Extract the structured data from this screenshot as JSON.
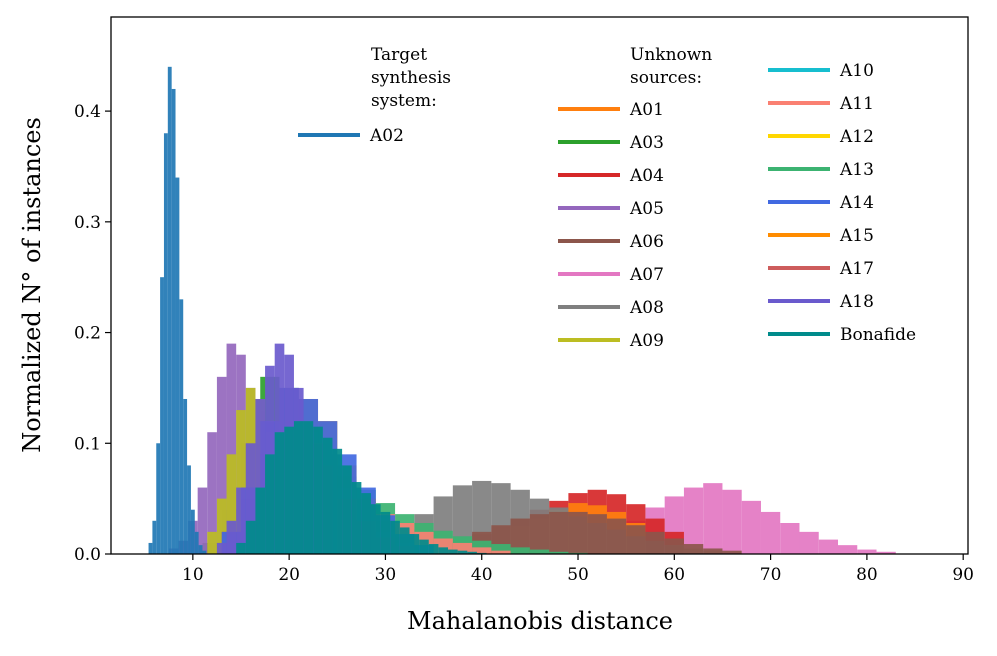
{
  "chart_data": {
    "type": "histogram",
    "xlabel": "Mahalanobis distance",
    "ylabel": "Normalized N° of instances",
    "xlim": [
      1.5,
      90.5
    ],
    "ylim": [
      0,
      0.485
    ],
    "xticks": [
      10,
      20,
      30,
      40,
      50,
      60,
      70,
      80,
      90
    ],
    "yticks": [
      0.0,
      0.1,
      0.2,
      0.3,
      0.4
    ],
    "ytick_labels": [
      "0.0",
      "0.1",
      "0.2",
      "0.3",
      "0.4"
    ],
    "grid": false,
    "legend_target": {
      "title": [
        "Target",
        "synthesis",
        "system:"
      ],
      "entries": [
        {
          "name": "A02",
          "color": "#1f77b4"
        }
      ]
    },
    "legend_unknown": {
      "title": [
        "Unknown",
        "sources:"
      ],
      "col1": [
        {
          "name": "A01",
          "color": "#ff7f0e"
        },
        {
          "name": "A03",
          "color": "#2ca02c"
        },
        {
          "name": "A04",
          "color": "#d62728"
        },
        {
          "name": "A05",
          "color": "#9467bd"
        },
        {
          "name": "A06",
          "color": "#8c564b"
        },
        {
          "name": "A07",
          "color": "#e377c2"
        },
        {
          "name": "A08",
          "color": "#7f7f7f"
        },
        {
          "name": "A09",
          "color": "#bcbd22"
        }
      ],
      "col2": [
        {
          "name": "A10",
          "color": "#17becf"
        },
        {
          "name": "A11",
          "color": "#fa8072"
        },
        {
          "name": "A12",
          "color": "#ffd700"
        },
        {
          "name": "A13",
          "color": "#3cb371"
        },
        {
          "name": "A14",
          "color": "#4169e1"
        },
        {
          "name": "A15",
          "color": "#ff8c00"
        },
        {
          "name": "A17",
          "color": "#cd5c5c"
        },
        {
          "name": "A18",
          "color": "#6a5acd"
        },
        {
          "name": "Bonafide",
          "color": "#008b8b"
        }
      ]
    },
    "series": [
      {
        "name": "A07",
        "color": "#e377c2",
        "x": [
          54,
          56,
          58,
          60,
          62,
          64,
          66,
          68,
          70,
          72,
          74,
          76,
          78,
          80,
          82
        ],
        "y": [
          0.018,
          0.03,
          0.042,
          0.052,
          0.06,
          0.064,
          0.058,
          0.048,
          0.038,
          0.028,
          0.02,
          0.013,
          0.008,
          0.004,
          0.002
        ]
      },
      {
        "name": "A04",
        "color": "#d62728",
        "x": [
          40,
          42,
          44,
          46,
          48,
          50,
          52,
          54,
          56,
          58,
          60
        ],
        "y": [
          0.018,
          0.025,
          0.032,
          0.04,
          0.048,
          0.055,
          0.058,
          0.054,
          0.045,
          0.032,
          0.02
        ]
      },
      {
        "name": "A01",
        "color": "#ff7f0e",
        "x": [
          44,
          46,
          48,
          50,
          52,
          54,
          56
        ],
        "y": [
          0.025,
          0.032,
          0.04,
          0.046,
          0.044,
          0.038,
          0.028
        ]
      },
      {
        "name": "A08",
        "color": "#7f7f7f",
        "x": [
          30,
          32,
          34,
          36,
          38,
          40,
          42,
          44,
          46,
          48,
          50,
          52,
          54,
          56,
          58,
          60,
          62,
          64
        ],
        "y": [
          0.012,
          0.022,
          0.036,
          0.052,
          0.062,
          0.066,
          0.064,
          0.058,
          0.05,
          0.042,
          0.034,
          0.028,
          0.022,
          0.016,
          0.012,
          0.008,
          0.005,
          0.003
        ]
      },
      {
        "name": "A06",
        "color": "#8c564b",
        "x": [
          40,
          42,
          44,
          46,
          48,
          50,
          52,
          54,
          56,
          58,
          60,
          62,
          64,
          66
        ],
        "y": [
          0.02,
          0.026,
          0.032,
          0.036,
          0.038,
          0.038,
          0.036,
          0.032,
          0.026,
          0.02,
          0.014,
          0.009,
          0.005,
          0.003
        ]
      },
      {
        "name": "A13",
        "color": "#3cb371",
        "x": [
          18,
          20,
          22,
          24,
          26,
          28,
          30,
          32,
          34,
          36,
          38,
          40,
          42,
          44,
          46,
          48,
          50
        ],
        "y": [
          0.08,
          0.09,
          0.088,
          0.082,
          0.07,
          0.058,
          0.046,
          0.036,
          0.028,
          0.021,
          0.016,
          0.012,
          0.009,
          0.006,
          0.004,
          0.002,
          0.001
        ]
      },
      {
        "name": "A11",
        "color": "#fa8072",
        "x": [
          22,
          24,
          26,
          28,
          30,
          32,
          34,
          36,
          38,
          40,
          42
        ],
        "y": [
          0.08,
          0.068,
          0.056,
          0.046,
          0.036,
          0.028,
          0.02,
          0.014,
          0.01,
          0.006,
          0.003
        ]
      },
      {
        "name": "A03",
        "color": "#2ca02c",
        "x": [
          12,
          14,
          16,
          18,
          20,
          22,
          24,
          26,
          28,
          30,
          32,
          34
        ],
        "y": [
          0.01,
          0.04,
          0.1,
          0.16,
          0.15,
          0.12,
          0.09,
          0.06,
          0.04,
          0.025,
          0.015,
          0.008
        ]
      },
      {
        "name": "A05",
        "color": "#9467bd",
        "x": [
          8,
          9,
          10,
          11,
          12,
          13,
          14,
          15,
          16,
          17,
          18,
          19,
          20,
          21,
          22,
          24,
          26
        ],
        "y": [
          0.005,
          0.012,
          0.03,
          0.06,
          0.11,
          0.16,
          0.19,
          0.18,
          0.15,
          0.13,
          0.12,
          0.1,
          0.08,
          0.06,
          0.045,
          0.025,
          0.012
        ]
      },
      {
        "name": "A09",
        "color": "#bcbd22",
        "x": [
          12,
          13,
          14,
          15,
          16,
          17,
          18,
          19,
          20,
          21,
          22
        ],
        "y": [
          0.02,
          0.05,
          0.09,
          0.13,
          0.15,
          0.14,
          0.11,
          0.08,
          0.05,
          0.03,
          0.015
        ]
      },
      {
        "name": "A15",
        "color": "#ff8c00",
        "x": [
          16,
          18,
          20,
          22,
          24,
          26,
          28,
          30,
          32
        ],
        "y": [
          0.04,
          0.08,
          0.12,
          0.14,
          0.12,
          0.08,
          0.05,
          0.03,
          0.015
        ]
      },
      {
        "name": "A12",
        "color": "#ffd700",
        "x": [
          20,
          22,
          24,
          26,
          28,
          30
        ],
        "y": [
          0.09,
          0.1,
          0.08,
          0.06,
          0.04,
          0.02
        ]
      },
      {
        "name": "A17",
        "color": "#cd5c5c",
        "x": [
          14,
          16,
          18,
          20,
          22,
          24,
          26,
          28,
          30,
          32
        ],
        "y": [
          0.02,
          0.05,
          0.09,
          0.12,
          0.11,
          0.09,
          0.06,
          0.04,
          0.02,
          0.01
        ]
      },
      {
        "name": "A14",
        "color": "#4169e1",
        "x": [
          14,
          16,
          18,
          20,
          22,
          24,
          26,
          28,
          30,
          32,
          34
        ],
        "y": [
          0.02,
          0.06,
          0.12,
          0.15,
          0.14,
          0.12,
          0.09,
          0.06,
          0.035,
          0.018,
          0.008
        ]
      },
      {
        "name": "A18",
        "color": "#6a5acd",
        "x": [
          13,
          14,
          15,
          16,
          17,
          18,
          19,
          20,
          21,
          22,
          23,
          24,
          26,
          28,
          30,
          32
        ],
        "y": [
          0.01,
          0.03,
          0.06,
          0.1,
          0.14,
          0.17,
          0.19,
          0.18,
          0.15,
          0.12,
          0.1,
          0.08,
          0.05,
          0.03,
          0.015,
          0.007
        ]
      },
      {
        "name": "Bonafide",
        "color": "#008b8b",
        "x": [
          15,
          16,
          17,
          18,
          19,
          20,
          21,
          22,
          23,
          24,
          25,
          26,
          27,
          28,
          29,
          30,
          31,
          32,
          33,
          34,
          35,
          36,
          37,
          38,
          39,
          40
        ],
        "y": [
          0.01,
          0.03,
          0.06,
          0.09,
          0.11,
          0.115,
          0.12,
          0.12,
          0.115,
          0.105,
          0.095,
          0.08,
          0.065,
          0.055,
          0.045,
          0.038,
          0.03,
          0.024,
          0.018,
          0.013,
          0.009,
          0.006,
          0.004,
          0.003,
          0.002,
          0.001
        ]
      },
      {
        "name": "A02",
        "color": "#1f77b4",
        "x": [
          5.6,
          6.0,
          6.4,
          6.8,
          7.2,
          7.6,
          8.0,
          8.4,
          8.8,
          9.2,
          9.6,
          10.0,
          10.4,
          10.8,
          11.2
        ],
        "y": [
          0.01,
          0.03,
          0.1,
          0.25,
          0.38,
          0.44,
          0.42,
          0.34,
          0.23,
          0.14,
          0.08,
          0.04,
          0.02,
          0.008,
          0.003
        ]
      }
    ]
  }
}
